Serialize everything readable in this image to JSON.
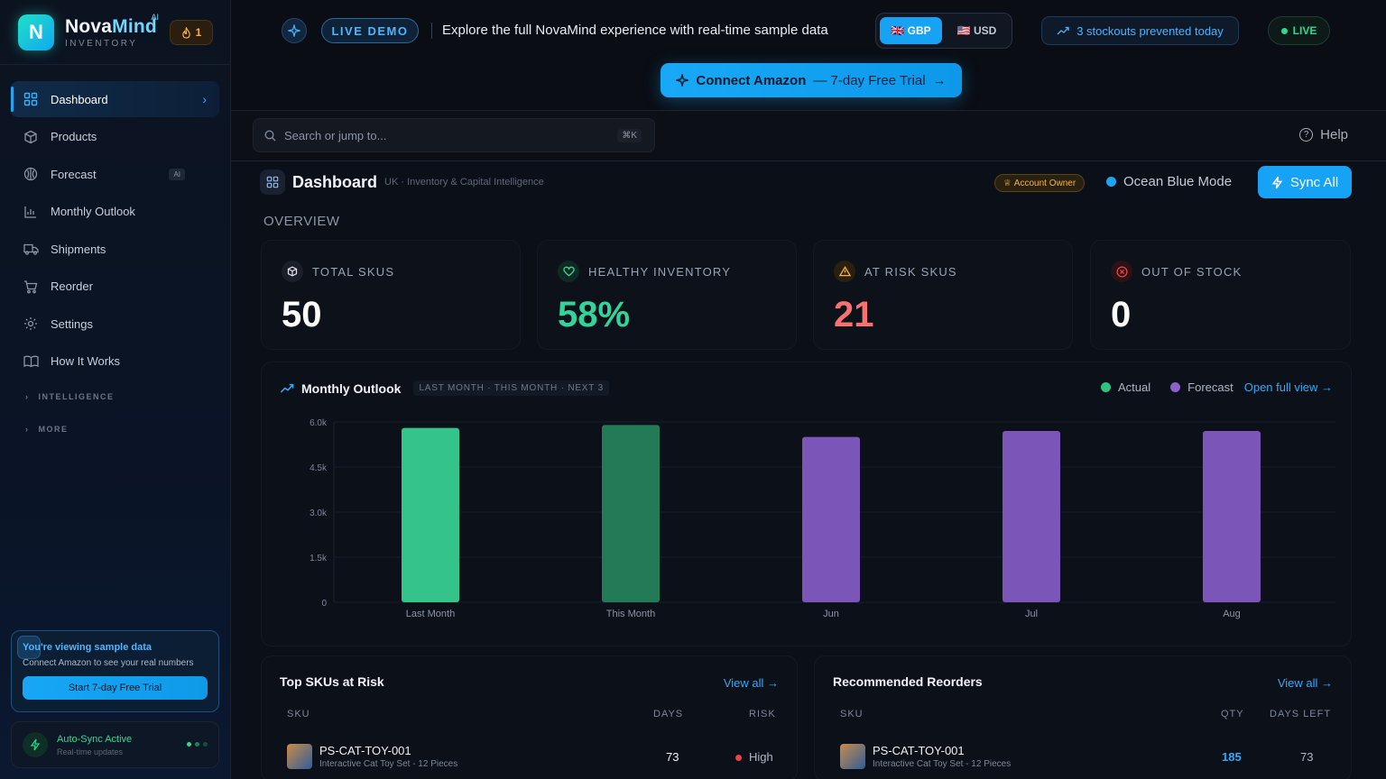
{
  "brand": {
    "logo_letter": "N",
    "name_a": "Nova",
    "name_b": "Mind",
    "ai_tag": "AI",
    "subtitle": "INVENTORY",
    "streak_count": "1"
  },
  "sidebar": {
    "items": [
      {
        "label": "Dashboard",
        "icon": "grid-icon"
      },
      {
        "label": "Products",
        "icon": "box-icon"
      },
      {
        "label": "Forecast",
        "icon": "brain-icon",
        "tag": "AI"
      },
      {
        "label": "Monthly Outlook",
        "icon": "bar-chart-icon"
      },
      {
        "label": "Shipments",
        "icon": "truck-icon"
      },
      {
        "label": "Reorder",
        "icon": "cart-icon"
      },
      {
        "label": "Settings",
        "icon": "gear-icon"
      },
      {
        "label": "How It Works",
        "icon": "book-icon"
      }
    ],
    "sections": [
      "INTELLIGENCE",
      "MORE"
    ],
    "sample": {
      "title": "You're viewing sample data",
      "subtitle": "Connect Amazon to see your real numbers",
      "button": "Start 7-day Free Trial"
    },
    "autosync": {
      "title": "Auto-Sync Active",
      "subtitle": "Real-time updates"
    }
  },
  "banner": {
    "live_demo": "LIVE DEMO",
    "text": "Explore the full NovaMind experience with real-time sample data",
    "currency": [
      {
        "label": "GBP",
        "flag": "🇬🇧",
        "selected": true
      },
      {
        "label": "USD",
        "flag": "🇺🇸",
        "selected": false
      }
    ],
    "stockouts": "3 stockouts prevented today",
    "live": "LIVE",
    "connect_main": "Connect Amazon",
    "connect_sub": "— 7-day Free Trial"
  },
  "search": {
    "placeholder": "Search or jump to...",
    "shortcut": "⌘K",
    "help": "Help"
  },
  "header": {
    "title": "Dashboard",
    "subtitle": "UK · Inventory & Capital Intelligence",
    "owner_badge": "Account Owner",
    "mode": "Ocean Blue Mode",
    "sync": "Sync All"
  },
  "overview_label": "OVERVIEW",
  "kpis": [
    {
      "label": "TOTAL SKUS",
      "value": "50",
      "color": "#ffffff",
      "icon": "cube-icon",
      "icon_color": "#e6e9ef",
      "icon_bg": "#1a1f2a"
    },
    {
      "label": "HEALTHY INVENTORY",
      "value": "58%",
      "color": "#34d399",
      "icon": "heart-icon",
      "icon_color": "#34d399",
      "icon_bg": "#0f2a22"
    },
    {
      "label": "AT RISK SKUS",
      "value": "21",
      "color": "#f87171",
      "icon": "warning-icon",
      "icon_color": "#f5b342",
      "icon_bg": "#2a2010"
    },
    {
      "label": "OUT OF STOCK",
      "value": "0",
      "color": "#ffffff",
      "icon": "x-circle-icon",
      "icon_color": "#ef4444",
      "icon_bg": "#2a1215"
    }
  ],
  "outlook": {
    "title": "Monthly Outlook",
    "tag": "LAST MONTH · THIS MONTH · NEXT 3",
    "legend": [
      "Actual",
      "Forecast"
    ],
    "open_full": "Open full view →"
  },
  "chart_data": {
    "type": "bar",
    "categories": [
      "Last Month",
      "This Month",
      "Jun",
      "Jul",
      "Aug"
    ],
    "series": [
      {
        "name": "Actual",
        "values": [
          5800,
          5900,
          null,
          null,
          null
        ]
      },
      {
        "name": "Forecast",
        "values": [
          null,
          null,
          5500,
          5700,
          5700
        ]
      }
    ],
    "bar_colors": [
      "#34c489",
      "#237a57",
      "#7c55b8",
      "#7c55b8",
      "#7c55b8"
    ],
    "yticks": [
      "6.0k",
      "4.5k",
      "3.0k",
      "1.5k",
      "0"
    ],
    "ylim": [
      0,
      6000
    ]
  },
  "at_risk": {
    "title": "Top SKUs at Risk",
    "view_all": "View all →",
    "headers": [
      "SKU",
      "DAYS",
      "RISK"
    ],
    "rows": [
      {
        "sku": "PS-CAT-TOY-001",
        "name": "Interactive Cat Toy Set - 12 Pieces",
        "days": "73",
        "risk": "High"
      }
    ]
  },
  "reorders": {
    "title": "Recommended Reorders",
    "view_all": "View all →",
    "headers": [
      "SKU",
      "QTY",
      "DAYS LEFT"
    ],
    "rows": [
      {
        "sku": "PS-CAT-TOY-001",
        "name": "Interactive Cat Toy Set - 12 Pieces",
        "qty": "185",
        "days_left": "73"
      }
    ]
  }
}
